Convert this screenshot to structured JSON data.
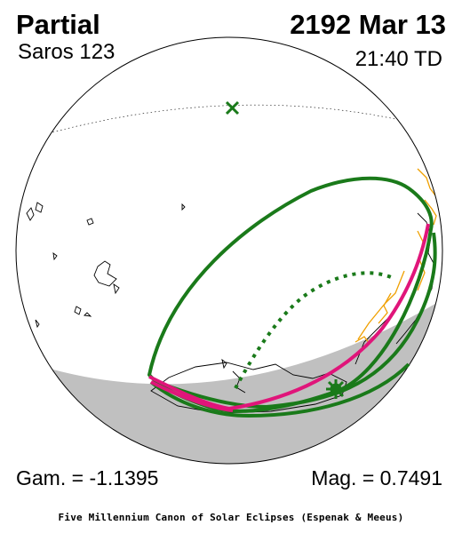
{
  "header": {
    "type": "Partial",
    "saros": "Saros 123",
    "date": "2192 Mar 13",
    "time": "21:40 TD"
  },
  "parameters": {
    "gamma": "Gam. = -1.1395",
    "magnitude": "Mag. = 0.7491"
  },
  "footer": {
    "credit": "Five Millennium Canon of Solar Eclipses (Espenak & Meeus)"
  },
  "colors": {
    "penumbra_limits": "#1a7a1a",
    "max_eclipse_line": "#e0157a",
    "night_shade": "#c0c0c0",
    "border_lines": "#f0a000",
    "coastlines": "#000000"
  }
}
